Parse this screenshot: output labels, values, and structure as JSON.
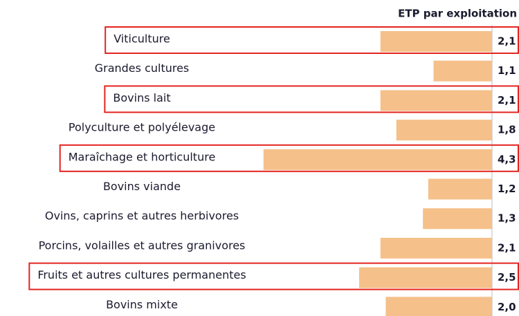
{
  "chart_data": {
    "type": "bar",
    "orientation": "horizontal",
    "title": "ETP par exploitation",
    "categories": [
      "Viticulture",
      "Grandes cultures",
      "Bovins lait",
      "Polyculture et polyélevage",
      "Maraîchage et horticulture",
      "Bovins viande",
      "Ovins, caprins et autres herbivores",
      "Porcins, volailles et autres granivores",
      "Fruits et autres cultures permanentes",
      "Bovins mixte"
    ],
    "values": [
      2.1,
      1.1,
      2.1,
      1.8,
      4.3,
      1.2,
      1.3,
      2.1,
      2.5,
      2.0
    ],
    "value_labels": [
      "2,1",
      "1,1",
      "2,1",
      "1,8",
      "4,3",
      "1,2",
      "1,3",
      "2,1",
      "2,5",
      "2,0"
    ],
    "color": "#f5c08a",
    "highlighted": [
      0,
      2,
      4,
      8
    ],
    "highlight_color": "#e3231e"
  }
}
